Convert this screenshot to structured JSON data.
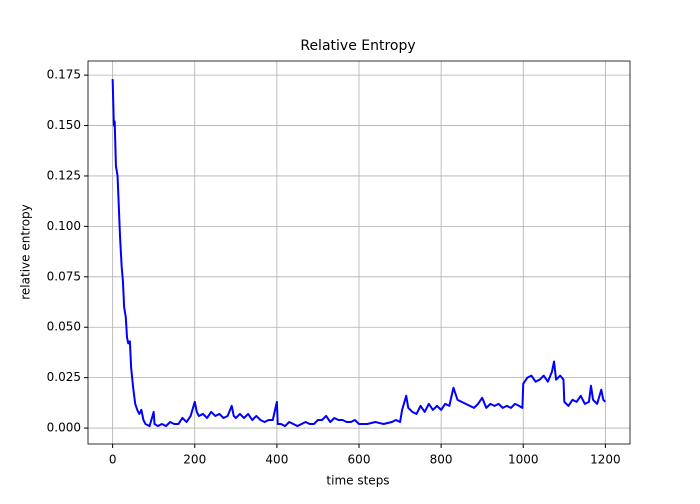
{
  "chart_data": {
    "type": "line",
    "title": "Relative Entropy",
    "xlabel": "time steps",
    "ylabel": "relative entropy",
    "color": "#0000ff",
    "grid": true,
    "x": [
      0,
      3,
      5,
      8,
      12,
      15,
      18,
      22,
      25,
      28,
      32,
      35,
      38,
      42,
      45,
      50,
      55,
      60,
      65,
      70,
      75,
      80,
      90,
      100,
      102,
      110,
      120,
      130,
      140,
      150,
      160,
      170,
      180,
      190,
      200,
      205,
      210,
      220,
      230,
      240,
      250,
      260,
      270,
      280,
      290,
      295,
      300,
      310,
      320,
      330,
      340,
      350,
      360,
      370,
      380,
      390,
      400,
      402,
      410,
      420,
      430,
      440,
      450,
      460,
      470,
      480,
      490,
      500,
      510,
      520,
      530,
      540,
      550,
      560,
      570,
      580,
      590,
      600,
      620,
      640,
      660,
      680,
      690,
      700,
      705,
      715,
      720,
      730,
      740,
      750,
      760,
      770,
      780,
      790,
      800,
      810,
      820,
      830,
      840,
      850,
      860,
      870,
      880,
      890,
      900,
      910,
      920,
      930,
      940,
      950,
      960,
      970,
      980,
      990,
      998,
      1000,
      1010,
      1020,
      1030,
      1040,
      1050,
      1060,
      1070,
      1075,
      1080,
      1090,
      1098,
      1100,
      1110,
      1120,
      1130,
      1140,
      1150,
      1160,
      1165,
      1170,
      1180,
      1190,
      1195,
      1200
    ],
    "values": [
      0.173,
      0.15,
      0.152,
      0.13,
      0.125,
      0.11,
      0.095,
      0.08,
      0.073,
      0.06,
      0.055,
      0.045,
      0.042,
      0.043,
      0.03,
      0.02,
      0.012,
      0.009,
      0.007,
      0.009,
      0.004,
      0.002,
      0.001,
      0.008,
      0.002,
      0.001,
      0.002,
      0.001,
      0.003,
      0.002,
      0.002,
      0.005,
      0.003,
      0.006,
      0.013,
      0.008,
      0.006,
      0.007,
      0.005,
      0.008,
      0.006,
      0.007,
      0.005,
      0.006,
      0.011,
      0.006,
      0.005,
      0.007,
      0.005,
      0.007,
      0.004,
      0.006,
      0.004,
      0.003,
      0.004,
      0.004,
      0.013,
      0.002,
      0.002,
      0.001,
      0.003,
      0.002,
      0.001,
      0.002,
      0.003,
      0.002,
      0.002,
      0.004,
      0.004,
      0.006,
      0.003,
      0.005,
      0.004,
      0.004,
      0.003,
      0.003,
      0.004,
      0.002,
      0.002,
      0.003,
      0.002,
      0.003,
      0.004,
      0.003,
      0.009,
      0.016,
      0.01,
      0.008,
      0.007,
      0.011,
      0.008,
      0.012,
      0.009,
      0.011,
      0.009,
      0.012,
      0.011,
      0.02,
      0.014,
      0.013,
      0.012,
      0.011,
      0.01,
      0.012,
      0.015,
      0.01,
      0.012,
      0.011,
      0.012,
      0.01,
      0.011,
      0.01,
      0.012,
      0.011,
      0.01,
      0.022,
      0.025,
      0.026,
      0.023,
      0.024,
      0.026,
      0.023,
      0.028,
      0.033,
      0.024,
      0.026,
      0.024,
      0.013,
      0.011,
      0.014,
      0.013,
      0.016,
      0.012,
      0.013,
      0.021,
      0.014,
      0.012,
      0.019,
      0.014,
      0.013
    ],
    "xlim": [
      -60,
      1260
    ],
    "ylim": [
      -0.0079,
      0.182
    ],
    "xticks": [
      0,
      200,
      400,
      600,
      800,
      1000,
      1200
    ],
    "yticks": [
      {
        "value": 0,
        "label": "0.000"
      },
      {
        "value": 0.025,
        "label": "0.025"
      },
      {
        "value": 0.05,
        "label": "0.050"
      },
      {
        "value": 0.075,
        "label": "0.075"
      },
      {
        "value": 0.1,
        "label": "0.100"
      },
      {
        "value": 0.125,
        "label": "0.125"
      },
      {
        "value": 0.15,
        "label": "0.150"
      },
      {
        "value": 0.175,
        "label": "0.175"
      }
    ]
  }
}
